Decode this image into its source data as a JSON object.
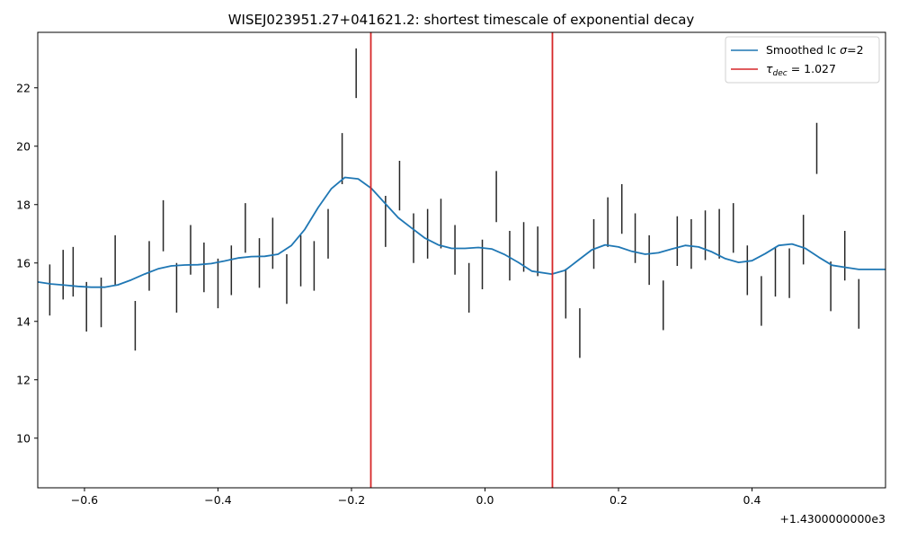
{
  "chart_data": {
    "type": "line",
    "title": "WISEJ023951.27+041621.2: shortest timescale of exponential decay",
    "xlabel": "",
    "ylabel": "",
    "x_offset_label": "+1.4300000000e3",
    "xlim": [
      -0.67,
      0.6
    ],
    "ylim": [
      8.3,
      23.9
    ],
    "x_ticks": [
      -0.6,
      -0.4,
      -0.2,
      0.0,
      0.2,
      0.4
    ],
    "x_tick_labels": [
      "−0.6",
      "−0.4",
      "−0.2",
      "0.0",
      "0.2",
      "0.4"
    ],
    "y_ticks": [
      10,
      12,
      14,
      16,
      18,
      20,
      22
    ],
    "y_tick_labels": [
      "10",
      "12",
      "14",
      "16",
      "18",
      "20",
      "22"
    ],
    "grid": false,
    "legend_position": "top-right",
    "colors": {
      "smoothed": "#1f77b4",
      "tau": "#d62728",
      "errorbar": "#000000"
    },
    "series": [
      {
        "name": "Smoothed lc σ=2",
        "legend_main": "Smoothed lc ",
        "legend_sigma": "σ",
        "legend_rest": "=2",
        "kind": "line",
        "x": [
          -0.67,
          -0.65,
          -0.63,
          -0.61,
          -0.59,
          -0.57,
          -0.55,
          -0.53,
          -0.51,
          -0.49,
          -0.47,
          -0.45,
          -0.43,
          -0.41,
          -0.39,
          -0.37,
          -0.35,
          -0.33,
          -0.31,
          -0.29,
          -0.27,
          -0.25,
          -0.23,
          -0.21,
          -0.19,
          -0.17,
          -0.15,
          -0.13,
          -0.11,
          -0.09,
          -0.07,
          -0.05,
          -0.03,
          -0.01,
          0.01,
          0.03,
          0.05,
          0.07,
          0.1,
          0.12,
          0.14,
          0.16,
          0.18,
          0.2,
          0.22,
          0.24,
          0.26,
          0.28,
          0.3,
          0.32,
          0.34,
          0.36,
          0.38,
          0.4,
          0.42,
          0.44,
          0.46,
          0.48,
          0.5,
          0.52,
          0.54,
          0.56,
          0.6
        ],
        "y": [
          15.35,
          15.28,
          15.24,
          15.2,
          15.17,
          15.17,
          15.25,
          15.42,
          15.62,
          15.8,
          15.9,
          15.93,
          15.94,
          15.98,
          16.07,
          16.17,
          16.22,
          16.23,
          16.3,
          16.6,
          17.15,
          17.9,
          18.55,
          18.93,
          18.88,
          18.55,
          18.05,
          17.55,
          17.2,
          16.85,
          16.62,
          16.5,
          16.5,
          16.53,
          16.48,
          16.28,
          16.02,
          15.72,
          15.62,
          15.75,
          16.1,
          16.45,
          16.62,
          16.55,
          16.4,
          16.3,
          16.35,
          16.48,
          16.6,
          16.55,
          16.38,
          16.15,
          16.02,
          16.08,
          16.32,
          16.6,
          16.65,
          16.5,
          16.2,
          15.92,
          15.85,
          15.78,
          15.78
        ]
      },
      {
        "name": "τ_dec = 1.027",
        "legend_tau": "τ",
        "legend_sub": "dec",
        "legend_rest": " = 1.027",
        "kind": "vlines",
        "x": [
          -0.171,
          0.101
        ]
      },
      {
        "name": "",
        "kind": "errorbars",
        "x": [
          -0.652,
          -0.632,
          -0.617,
          -0.597,
          -0.575,
          -0.554,
          -0.524,
          -0.503,
          -0.482,
          -0.462,
          -0.441,
          -0.421,
          -0.4,
          -0.38,
          -0.359,
          -0.338,
          -0.318,
          -0.297,
          -0.276,
          -0.256,
          -0.235,
          -0.214,
          -0.193,
          -0.149,
          -0.128,
          -0.107,
          -0.086,
          -0.066,
          -0.045,
          -0.024,
          -0.004,
          0.017,
          0.037,
          0.058,
          0.079,
          0.121,
          0.142,
          0.163,
          0.184,
          0.205,
          0.225,
          0.246,
          0.267,
          0.288,
          0.309,
          0.33,
          0.351,
          0.372,
          0.393,
          0.414,
          0.435,
          0.456,
          0.477,
          0.497,
          0.518,
          0.539,
          0.56
        ],
        "ylow": [
          14.2,
          14.75,
          14.85,
          13.65,
          13.8,
          15.25,
          13.0,
          15.05,
          16.4,
          14.3,
          15.6,
          15.0,
          14.45,
          14.9,
          16.35,
          15.15,
          15.8,
          14.6,
          15.2,
          15.05,
          16.15,
          18.7,
          21.65,
          16.55,
          17.8,
          16.0,
          16.15,
          16.5,
          15.6,
          14.3,
          15.1,
          17.4,
          15.4,
          15.7,
          15.55,
          14.1,
          12.75,
          15.8,
          16.55,
          17.0,
          16.0,
          15.25,
          13.7,
          15.9,
          15.8,
          16.1,
          16.15,
          16.35,
          14.9,
          13.85,
          14.85,
          14.8,
          15.95,
          19.05,
          14.35,
          15.4,
          13.75
        ],
        "yhigh": [
          15.95,
          16.45,
          16.55,
          15.35,
          15.5,
          16.95,
          14.7,
          16.75,
          18.15,
          16.0,
          17.3,
          16.7,
          16.15,
          16.6,
          18.05,
          16.85,
          17.55,
          16.3,
          16.95,
          16.75,
          17.85,
          20.45,
          23.35,
          18.3,
          19.5,
          17.7,
          17.85,
          18.2,
          17.3,
          16.0,
          16.8,
          19.15,
          17.1,
          17.4,
          17.25,
          15.8,
          14.45,
          17.5,
          18.25,
          18.7,
          17.7,
          16.95,
          15.4,
          17.6,
          17.5,
          17.8,
          17.85,
          18.05,
          16.6,
          15.55,
          16.55,
          16.5,
          17.65,
          20.8,
          16.05,
          17.1,
          15.45
        ]
      }
    ]
  }
}
